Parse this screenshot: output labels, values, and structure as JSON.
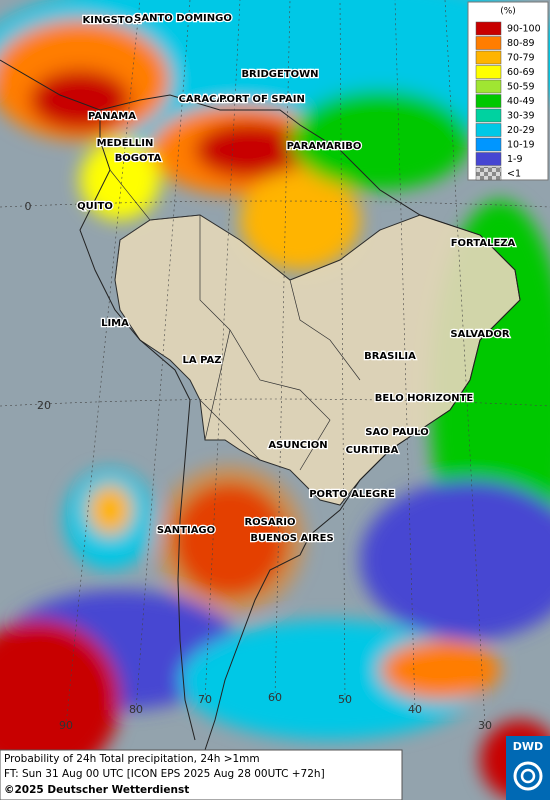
{
  "legend": {
    "title": "(%)",
    "items": [
      {
        "label": "90-100",
        "color": "#c80000"
      },
      {
        "label": "80-89",
        "color": "#ff7d00"
      },
      {
        "label": "70-79",
        "color": "#ffb400"
      },
      {
        "label": "60-69",
        "color": "#ffff00"
      },
      {
        "label": "50-59",
        "color": "#a0e632"
      },
      {
        "label": "40-49",
        "color": "#00c800"
      },
      {
        "label": "30-39",
        "color": "#00d2a0"
      },
      {
        "label": "20-29",
        "color": "#00c8e6"
      },
      {
        "label": "10-19",
        "color": "#0096ff"
      },
      {
        "label": "1-9",
        "color": "#4646d2"
      },
      {
        "label": "<1",
        "color": "#b4b4b4"
      }
    ]
  },
  "cities": [
    "KINGSTON",
    "SANTO DOMINGO",
    "BRIDGETOWN",
    "CARACAS",
    "PORT OF SPAIN",
    "PANAMA",
    "MEDELLIN",
    "BOGOTA",
    "PARAMARIBO",
    "QUITO",
    "FORTALEZA",
    "LIMA",
    "SALVADOR",
    "LA PAZ",
    "BRASILIA",
    "BELO HORIZONTE",
    "SAO PAULO",
    "ASUNCION",
    "CURITIBA",
    "PORTO ALEGRE",
    "ROSARIO",
    "SANTIAGO",
    "BUENOS AIRES"
  ],
  "grid_labels": [
    "0",
    "20",
    "90",
    "80",
    "70",
    "60",
    "50",
    "40",
    "30"
  ],
  "footer": {
    "line1": "Probability of 24h Total precipitation, 24h >1mm",
    "line2": "FT: Sun 31 Aug 00 UTC [ICON EPS 2025 Aug 28 00UTC +72h]",
    "copyright": "©2025 Deutscher Wetterdienst"
  },
  "logo": "DWD"
}
